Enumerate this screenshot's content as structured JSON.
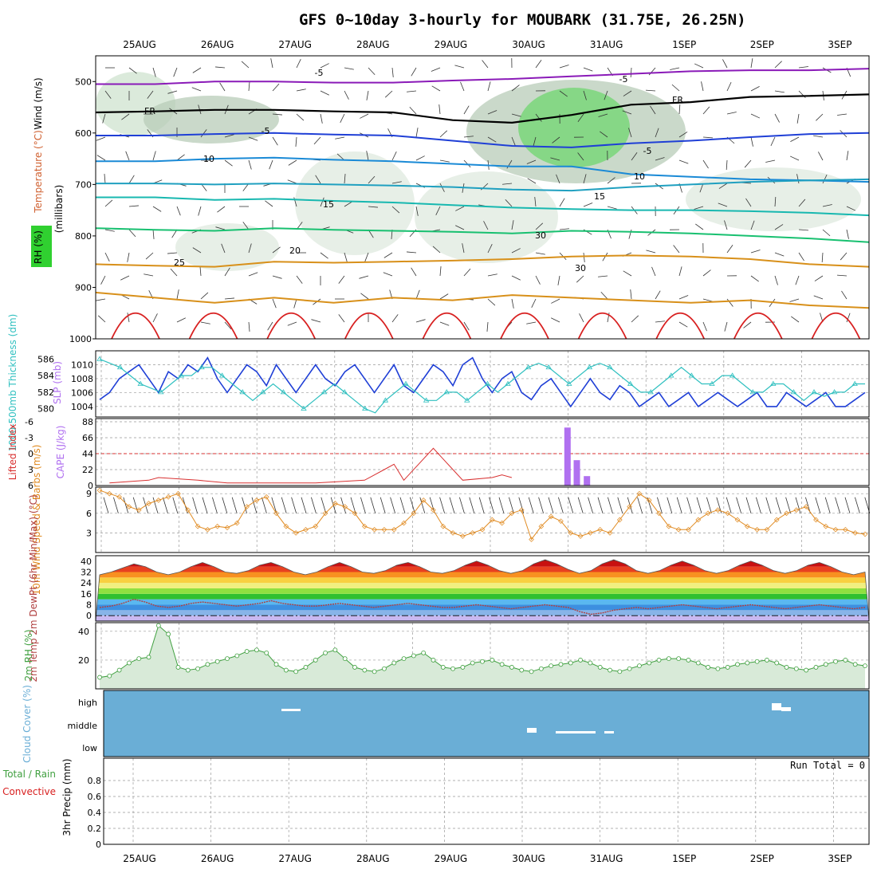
{
  "title": "GFS 0~10day 3-hourly for MOUBARK (31.75E, 26.25N)",
  "dates": [
    "25AUG",
    "26AUG",
    "27AUG",
    "28AUG",
    "29AUG",
    "30AUG",
    "31AUG",
    "1SEP",
    "2SEP",
    "3SEP"
  ],
  "colors": {
    "purple": "#8a1ab8",
    "black": "#000000",
    "blue": "#1f3fd6",
    "lightblue": "#1a8ad6",
    "cyan": "#18b8b0",
    "green": "#18c070",
    "orange": "#d8901a",
    "red": "#d82020",
    "slp": "#1f3fd6",
    "thick": "#30c0c0",
    "cape": "#b070f0",
    "li": "#d83030",
    "wind10": "#e08a20",
    "rh": "#40a040",
    "cloud": "#6aaed6",
    "grid": "#999999"
  },
  "chart_data": [
    {
      "name": "profile",
      "type": "contour",
      "ylabel_wind": "Wind (m/s)",
      "ylabel_temp": "Temperature (°C)",
      "ylabel_rh": "RH (%)",
      "ylabel_p": "(millibars)",
      "yticks": [
        "500",
        "600",
        "700",
        "800",
        "900",
        "1000"
      ],
      "ylim": [
        450,
        1000
      ],
      "isotherms": [
        {
          "label": "-5",
          "level": -5,
          "p": [
            505,
            505,
            500,
            500,
            502,
            502,
            498,
            495,
            490,
            485,
            480,
            478,
            478,
            475
          ]
        },
        {
          "label": "FR",
          "level": 0,
          "p": [
            560,
            558,
            555,
            555,
            558,
            560,
            575,
            580,
            565,
            545,
            540,
            530,
            528,
            525
          ]
        },
        {
          "label": "-5",
          "level": -5,
          "p": [
            605,
            605,
            602,
            600,
            603,
            605,
            615,
            625,
            628,
            620,
            615,
            608,
            602,
            600
          ]
        },
        {
          "label": "10",
          "level": 10,
          "p": [
            655,
            655,
            650,
            648,
            652,
            655,
            660,
            665,
            665,
            680,
            685,
            690,
            692,
            695
          ]
        },
        {
          "label": "-5",
          "level": -5,
          "p": [
            698,
            698,
            700,
            698,
            700,
            702,
            705,
            710,
            712,
            705,
            700,
            695,
            692,
            690
          ]
        },
        {
          "label": "15",
          "level": 15,
          "p": [
            725,
            725,
            730,
            728,
            732,
            735,
            740,
            745,
            748,
            750,
            750,
            752,
            755,
            760
          ]
        },
        {
          "label": "20",
          "level": 20,
          "p": [
            785,
            788,
            790,
            785,
            788,
            790,
            792,
            795,
            790,
            792,
            795,
            800,
            805,
            812
          ]
        },
        {
          "label": "25",
          "level": 25,
          "p": [
            855,
            858,
            860,
            850,
            852,
            850,
            848,
            845,
            840,
            838,
            840,
            845,
            855,
            860
          ]
        },
        {
          "label": "30",
          "level": 30,
          "p": [
            910,
            920,
            930,
            920,
            930,
            920,
            925,
            915,
            920,
            925,
            930,
            925,
            935,
            940
          ]
        }
      ],
      "labels": [
        "-5",
        "FR",
        "-5",
        "10",
        "15",
        "20",
        "25",
        "30",
        "30",
        "15",
        "10",
        "-5",
        "FR",
        "-5"
      ]
    },
    {
      "name": "slp-thickness",
      "type": "line",
      "ylabel_left": "1000-500mb Thickness (dm)",
      "ylabel_right": "SLP (mb)",
      "yticks_thick": [
        "586",
        "584",
        "582",
        "580"
      ],
      "yticks_slp": [
        "1010",
        "1008",
        "1006",
        "1004"
      ],
      "series": [
        {
          "name": "SLP",
          "values": [
            1005,
            1006,
            1008,
            1009,
            1010,
            1008,
            1006,
            1009,
            1008,
            1010,
            1009,
            1011,
            1008,
            1006,
            1008,
            1010,
            1009,
            1007,
            1010,
            1008,
            1006,
            1008,
            1010,
            1008,
            1007,
            1009,
            1010,
            1008,
            1006,
            1008,
            1010,
            1007,
            1006,
            1008,
            1010,
            1009,
            1007,
            1010,
            1011,
            1008,
            1006,
            1008,
            1009,
            1006,
            1005,
            1007,
            1008,
            1006,
            1004,
            1006,
            1008,
            1006,
            1005,
            1007,
            1006,
            1004,
            1005,
            1006,
            1004,
            1005,
            1006,
            1004,
            1005,
            1006,
            1005,
            1004,
            1005,
            1006,
            1004,
            1004,
            1006,
            1005,
            1004,
            1005,
            1006,
            1004,
            1004,
            1005,
            1006
          ]
        },
        {
          "name": "Thickness",
          "values": [
            586,
            585.5,
            585,
            584,
            583,
            582.5,
            582,
            583,
            584,
            584,
            585,
            585,
            584,
            583,
            582,
            581,
            582,
            583,
            582,
            581,
            580,
            581,
            582,
            583,
            582,
            581,
            580,
            579.5,
            581,
            582,
            583,
            582,
            581,
            581,
            582,
            582,
            581,
            582,
            583,
            582,
            583,
            584,
            585,
            585.5,
            585,
            584,
            583,
            584,
            585,
            585.5,
            585,
            584,
            583,
            582,
            582,
            583,
            584,
            585,
            584,
            583,
            583,
            584,
            584,
            583,
            582,
            582,
            583,
            583,
            582,
            581,
            582,
            581.5,
            582,
            582,
            583,
            583
          ]
        }
      ]
    },
    {
      "name": "cape-li",
      "type": "bar",
      "ylabel_left": "Lifted Index",
      "ylabel_right": "CAPE (J/kg)",
      "yticks_li": [
        "-6",
        "-3",
        "0",
        "3",
        "6"
      ],
      "yticks_cape": [
        "88",
        "66",
        "44",
        "22",
        "0"
      ],
      "cape_bars": [
        {
          "day": 5.5,
          "value": 80
        },
        {
          "day": 5.62,
          "value": 35
        },
        {
          "day": 5.75,
          "value": 13
        }
      ],
      "li_values": [
        6,
        5.5,
        6,
        6,
        6,
        5,
        4.5,
        6,
        6,
        6,
        5,
        6,
        6,
        5.5,
        6,
        6,
        6,
        6,
        5.5,
        6,
        6,
        6,
        5.5,
        6,
        6,
        6,
        6,
        5,
        4,
        3,
        2,
        5,
        6,
        6,
        -1,
        1,
        3,
        5,
        6,
        6,
        4.5,
        4,
        4.5,
        6,
        6,
        6,
        6,
        6,
        6,
        6,
        6,
        6,
        6,
        6,
        6,
        6,
        6,
        6,
        6,
        6,
        6,
        6,
        6,
        6,
        6,
        6,
        6,
        6,
        6,
        6,
        6,
        6,
        6,
        6,
        6,
        6,
        6,
        6,
        6
      ]
    },
    {
      "name": "wind10m",
      "type": "line",
      "ylabel": "10m Wind Speed & Barbs (m/s)",
      "yticks": [
        "9",
        "6",
        "3"
      ],
      "values": [
        9.5,
        9,
        8.5,
        7,
        6.5,
        7.5,
        8,
        8.5,
        9,
        6.5,
        4,
        3.5,
        4,
        3.8,
        4.5,
        7,
        8,
        8.5,
        6,
        4,
        3,
        3.5,
        4,
        6,
        7.5,
        7,
        6,
        4,
        3.5,
        3.5,
        3.5,
        4.5,
        6,
        8,
        6.5,
        4,
        3,
        2.5,
        3,
        3.5,
        5,
        4.5,
        6,
        6.5,
        2,
        4,
        5.5,
        4.8,
        3,
        2.5,
        3,
        3.5,
        3,
        5,
        7,
        9,
        8,
        6,
        4,
        3.5,
        3.5,
        5,
        6,
        6.5,
        6,
        5,
        4,
        3.5,
        3.5,
        5,
        6,
        6.5,
        7,
        5,
        4,
        3.5,
        3.5,
        3,
        2.8
      ]
    },
    {
      "name": "temp2m",
      "type": "area",
      "ylabel": "2m Temp 2m DewPt (6hr Min/Max) (°C)",
      "yticks": [
        "40",
        "32",
        "24",
        "16",
        "8",
        "0"
      ],
      "temp": [
        30,
        32,
        35,
        38,
        36,
        32,
        30,
        32,
        36,
        39,
        36,
        32,
        31,
        33,
        37,
        39,
        36,
        32,
        30,
        32,
        36,
        39,
        36,
        32,
        31,
        33,
        37,
        39,
        36,
        32,
        31,
        33,
        37,
        40,
        37,
        33,
        31,
        33,
        38,
        41,
        38,
        34,
        31,
        33,
        38,
        41,
        38,
        33,
        31,
        33,
        37,
        40,
        37,
        33,
        31,
        33,
        37,
        40,
        37,
        33,
        31,
        33,
        37,
        39,
        36,
        32,
        30,
        32
      ],
      "dewpt": [
        6,
        7,
        9,
        12,
        10,
        7,
        6,
        7,
        9,
        10,
        9,
        8,
        7,
        8,
        9,
        11,
        9,
        8,
        7,
        7,
        8,
        9,
        8,
        7,
        6,
        7,
        8,
        9,
        8,
        7,
        6,
        6,
        7,
        8,
        7,
        6,
        5,
        6,
        7,
        8,
        7,
        6,
        3,
        1,
        2,
        4,
        5,
        6,
        5,
        6,
        7,
        8,
        7,
        6,
        5,
        6,
        7,
        8,
        7,
        6,
        5,
        6,
        7,
        8,
        7,
        6,
        5,
        6
      ]
    },
    {
      "name": "rh2m",
      "type": "area",
      "ylabel": "2m RH (%)",
      "yticks": [
        "40",
        "20"
      ],
      "values": [
        8,
        9,
        13,
        18,
        21,
        22,
        44,
        38,
        15,
        13,
        14,
        17,
        19,
        21,
        23,
        26,
        27,
        25,
        17,
        13,
        12,
        15,
        20,
        25,
        27,
        21,
        15,
        13,
        12,
        14,
        18,
        21,
        23,
        25,
        20,
        15,
        14,
        15,
        18,
        19,
        20,
        17,
        15,
        13,
        12,
        14,
        16,
        17,
        18,
        20,
        18,
        15,
        13,
        12,
        14,
        16,
        18,
        20,
        21,
        21,
        20,
        18,
        15,
        14,
        15,
        17,
        18,
        19,
        20,
        18,
        15,
        14,
        13,
        15,
        17,
        19,
        20,
        17,
        16
      ]
    },
    {
      "name": "cloud",
      "type": "heatmap",
      "ylabel": "Cloud Cover (%)",
      "yticks": [
        "high",
        "middle",
        "low"
      ]
    },
    {
      "name": "precip",
      "type": "bar",
      "ylabel": "3hr Precip (mm)",
      "legend_total": "Total / Rain",
      "legend_conv": "Convective",
      "yticks": [
        "0.8",
        "0.6",
        "0.4",
        "0.2",
        "0"
      ],
      "run_total": "Run Total = 0",
      "values": []
    }
  ]
}
